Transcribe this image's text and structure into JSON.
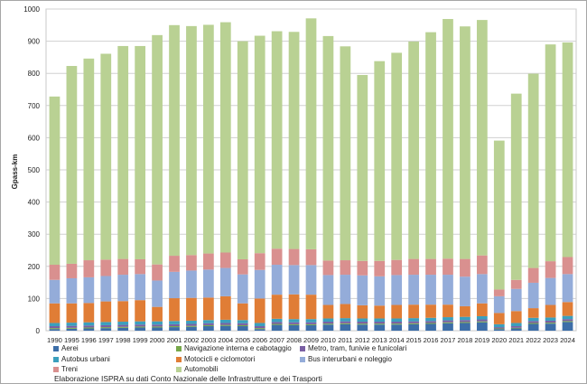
{
  "chart_data": {
    "type": "bar",
    "stacked": true,
    "title": "",
    "xlabel": "",
    "ylabel": "Gpass-km",
    "ylim": [
      0,
      1000
    ],
    "yticks": [
      0,
      100,
      200,
      300,
      400,
      500,
      600,
      700,
      800,
      900,
      1000
    ],
    "grid": true,
    "legend_position": "bottom",
    "categories": [
      "1990",
      "1995",
      "1996",
      "1997",
      "1998",
      "1999",
      "2000",
      "2001",
      "2002",
      "2003",
      "2004",
      "2005",
      "2006",
      "2007",
      "2008",
      "2009",
      "2010",
      "2011",
      "2012",
      "2013",
      "2014",
      "2015",
      "2016",
      "2017",
      "2018",
      "2019",
      "2020",
      "2021",
      "2022",
      "2023",
      "2024"
    ],
    "series": [
      {
        "name": "Aerei",
        "color": "#3d6ea8",
        "values": [
          5,
          6,
          7,
          8,
          9,
          10,
          10,
          11,
          12,
          14,
          15,
          14,
          5,
          18,
          17,
          17,
          19,
          20,
          19,
          19,
          19,
          20,
          21,
          23,
          24,
          26,
          5,
          7,
          21,
          22,
          27
        ]
      },
      {
        "name": "Navigazione interna e cabotaggio",
        "color": "#77a84a",
        "values": [
          3,
          3,
          3,
          3,
          3,
          3,
          3,
          3,
          3,
          3,
          3,
          3,
          3,
          3,
          3,
          3,
          3,
          3,
          3,
          3,
          3,
          3,
          3,
          3,
          3,
          3,
          2,
          2,
          3,
          3,
          3
        ]
      },
      {
        "name": "Metro, tram, funivie e funicolari",
        "color": "#7a5fa3",
        "values": [
          6,
          6,
          6,
          6,
          6,
          6,
          6,
          6,
          6,
          6,
          6,
          6,
          6,
          6,
          6,
          6,
          6,
          6,
          6,
          6,
          6,
          6,
          6,
          6,
          6,
          6,
          4,
          5,
          6,
          6,
          6
        ]
      },
      {
        "name": "Autobus urbani",
        "color": "#3b9fbd",
        "values": [
          10,
          10,
          10,
          10,
          10,
          10,
          10,
          10,
          10,
          10,
          10,
          10,
          10,
          10,
          10,
          10,
          10,
          10,
          10,
          10,
          10,
          10,
          10,
          10,
          10,
          10,
          9,
          10,
          10,
          10,
          10
        ]
      },
      {
        "name": "Motocicli e ciclomotori",
        "color": "#e07d36",
        "values": [
          61,
          60,
          60,
          64,
          64,
          66,
          45,
          71,
          71,
          70,
          73,
          52,
          76,
          75,
          77,
          76,
          42,
          44,
          41,
          40,
          42,
          42,
          41,
          39,
          33,
          40,
          35,
          37,
          30,
          39,
          43
        ]
      },
      {
        "name": "Bus interurbani e noleggio",
        "color": "#94acd9",
        "values": [
          73,
          78,
          80,
          79,
          82,
          81,
          82,
          82,
          85,
          87,
          88,
          90,
          89,
          93,
          91,
          92,
          93,
          91,
          93,
          91,
          93,
          93,
          93,
          93,
          92,
          91,
          52,
          69,
          79,
          84,
          87
        ]
      },
      {
        "name": "Treni",
        "color": "#d9908f",
        "values": [
          47,
          45,
          53,
          51,
          49,
          46,
          50,
          50,
          48,
          50,
          48,
          47,
          52,
          50,
          50,
          49,
          45,
          45,
          45,
          48,
          47,
          49,
          49,
          50,
          55,
          58,
          21,
          28,
          46,
          52,
          53
        ]
      },
      {
        "name": "Automobili",
        "color": "#b9d193",
        "values": [
          523,
          615,
          627,
          640,
          662,
          663,
          713,
          717,
          712,
          711,
          716,
          678,
          676,
          676,
          675,
          718,
          698,
          665,
          578,
          621,
          644,
          676,
          705,
          745,
          723,
          732,
          463,
          579,
          604,
          674,
          667
        ]
      }
    ],
    "source": "Elaborazione ISPRA su dati Conto Nazionale delle Infrastrutture e dei Trasporti"
  }
}
